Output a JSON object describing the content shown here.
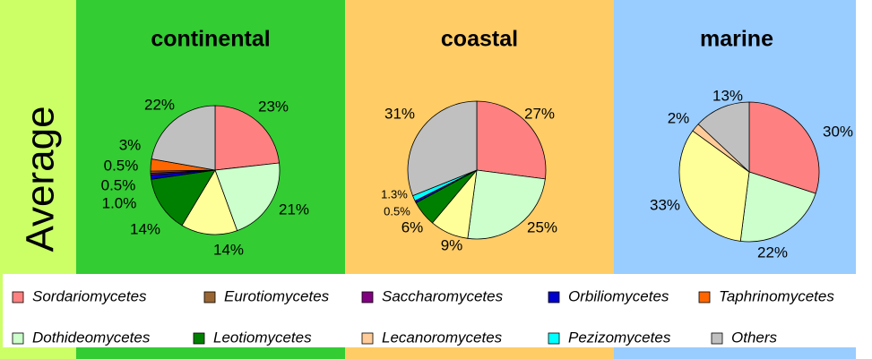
{
  "chart_data": [
    {
      "type": "pie",
      "title": "continental",
      "values": [
        23,
        21,
        14,
        14,
        1.0,
        0.5,
        0.5,
        3,
        22
      ],
      "value_labels": [
        "23%",
        "21%",
        "14%",
        "14%",
        "1.0%",
        "0.5%",
        "0.5%",
        "3%",
        "22%"
      ],
      "colors": [
        "#ff8080",
        "#ccffcc",
        "#ffff99",
        "#008000",
        "#0000cc",
        "#800080",
        "#996633",
        "#ff6600",
        "#c0c0c0"
      ]
    },
    {
      "type": "pie",
      "title": "coastal",
      "values": [
        27,
        25,
        9,
        6,
        0.5,
        1.3,
        31
      ],
      "value_labels": [
        "27%",
        "25%",
        "9%",
        "6%",
        "0.5%",
        "1.3%",
        "31%"
      ],
      "colors": [
        "#ff8080",
        "#ccffcc",
        "#ffff99",
        "#008000",
        "#0000cc",
        "#00ffff",
        "#c0c0c0"
      ]
    },
    {
      "type": "pie",
      "title": "marine",
      "values": [
        30,
        22,
        33,
        2,
        13
      ],
      "value_labels": [
        "30%",
        "22%",
        "33%",
        "2%",
        "13%"
      ],
      "colors": [
        "#ff8080",
        "#ccffcc",
        "#ffff99",
        "#ffcc99",
        "#c0c0c0"
      ]
    }
  ],
  "row_label": "Average",
  "legend": [
    {
      "name": "Sordariomycetes",
      "color": "#ff8080"
    },
    {
      "name": "Eurotiomycetes",
      "color": "#996633"
    },
    {
      "name": "Saccharomycetes",
      "color": "#800080"
    },
    {
      "name": "Orbiliomycetes",
      "color": "#0000cc"
    },
    {
      "name": "Taphrinomycetes",
      "color": "#ff6600"
    },
    {
      "name": "Dothideomycetes",
      "color": "#ccffcc"
    },
    {
      "name": "Leotiomycetes",
      "color": "#008000"
    },
    {
      "name": "Lecanoromycetes",
      "color": "#ffcc99"
    },
    {
      "name": "Pezizomycetes",
      "color": "#00ffff"
    },
    {
      "name": "Others",
      "color": "#c0c0c0"
    }
  ]
}
